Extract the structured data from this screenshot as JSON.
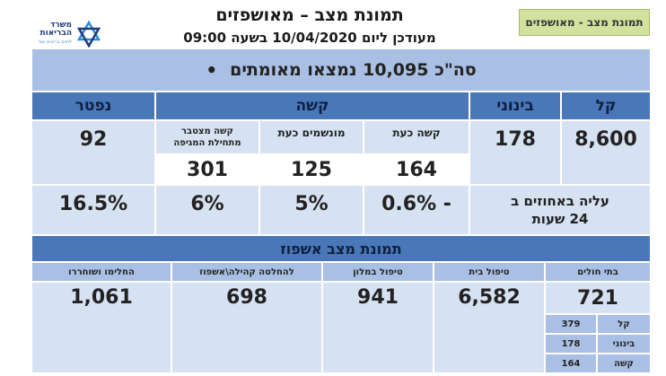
{
  "header": {
    "title": "תמונת מצב – מאושפזים",
    "subtitle": "מעודכן ליום 10/04/2020 בשעה 09:00",
    "tag": "תמונת מצב - מאושפזים",
    "logo_line1": "משרד",
    "logo_line2": "הבריאות",
    "logo_tagline": "לחיים בריאים יותר"
  },
  "summary": {
    "total_line": "סה\"כ 10,095 נמצאו מאומתים",
    "bullet": "•"
  },
  "categories": {
    "mild": "קל",
    "moderate": "בינוני",
    "severe": "קשה",
    "dead": "נפטר"
  },
  "severe_sub": {
    "now": "קשה כעת",
    "ventilated": "מונשמים כעת",
    "cumulative": "קשה מצטבר מתחילת המגיפה"
  },
  "values": {
    "mild": "8,600",
    "moderate": "178",
    "severe_now": "164",
    "ventilated": "125",
    "cumulative": "301",
    "dead": "92"
  },
  "percent_row": {
    "label": "עליה באחוזים ב 24 שעות",
    "severe_now": "- 0.6%",
    "ventilated": "5%",
    "cumulative": "6%",
    "dead": "16.5%"
  },
  "hospitalization": {
    "section_title": "תמונת מצב אשפוז",
    "columns": [
      "בתי חולים",
      "טיפול בית",
      "טיפול במלון",
      "להחלטה קהילה\\אשפוז",
      "החלימו ושוחררו"
    ],
    "values": [
      "721",
      "6,582",
      "941",
      "698",
      "1,061"
    ],
    "hospital_breakdown": [
      {
        "label": "קל",
        "value": "379"
      },
      {
        "label": "בינוני",
        "value": "178"
      },
      {
        "label": "קשה",
        "value": "164"
      }
    ]
  },
  "colors": {
    "accent_dark": "#4a77b8",
    "accent_mid": "#a9c0e4",
    "accent_light": "#d6e1f1",
    "tag_green": "#d2e29e"
  }
}
